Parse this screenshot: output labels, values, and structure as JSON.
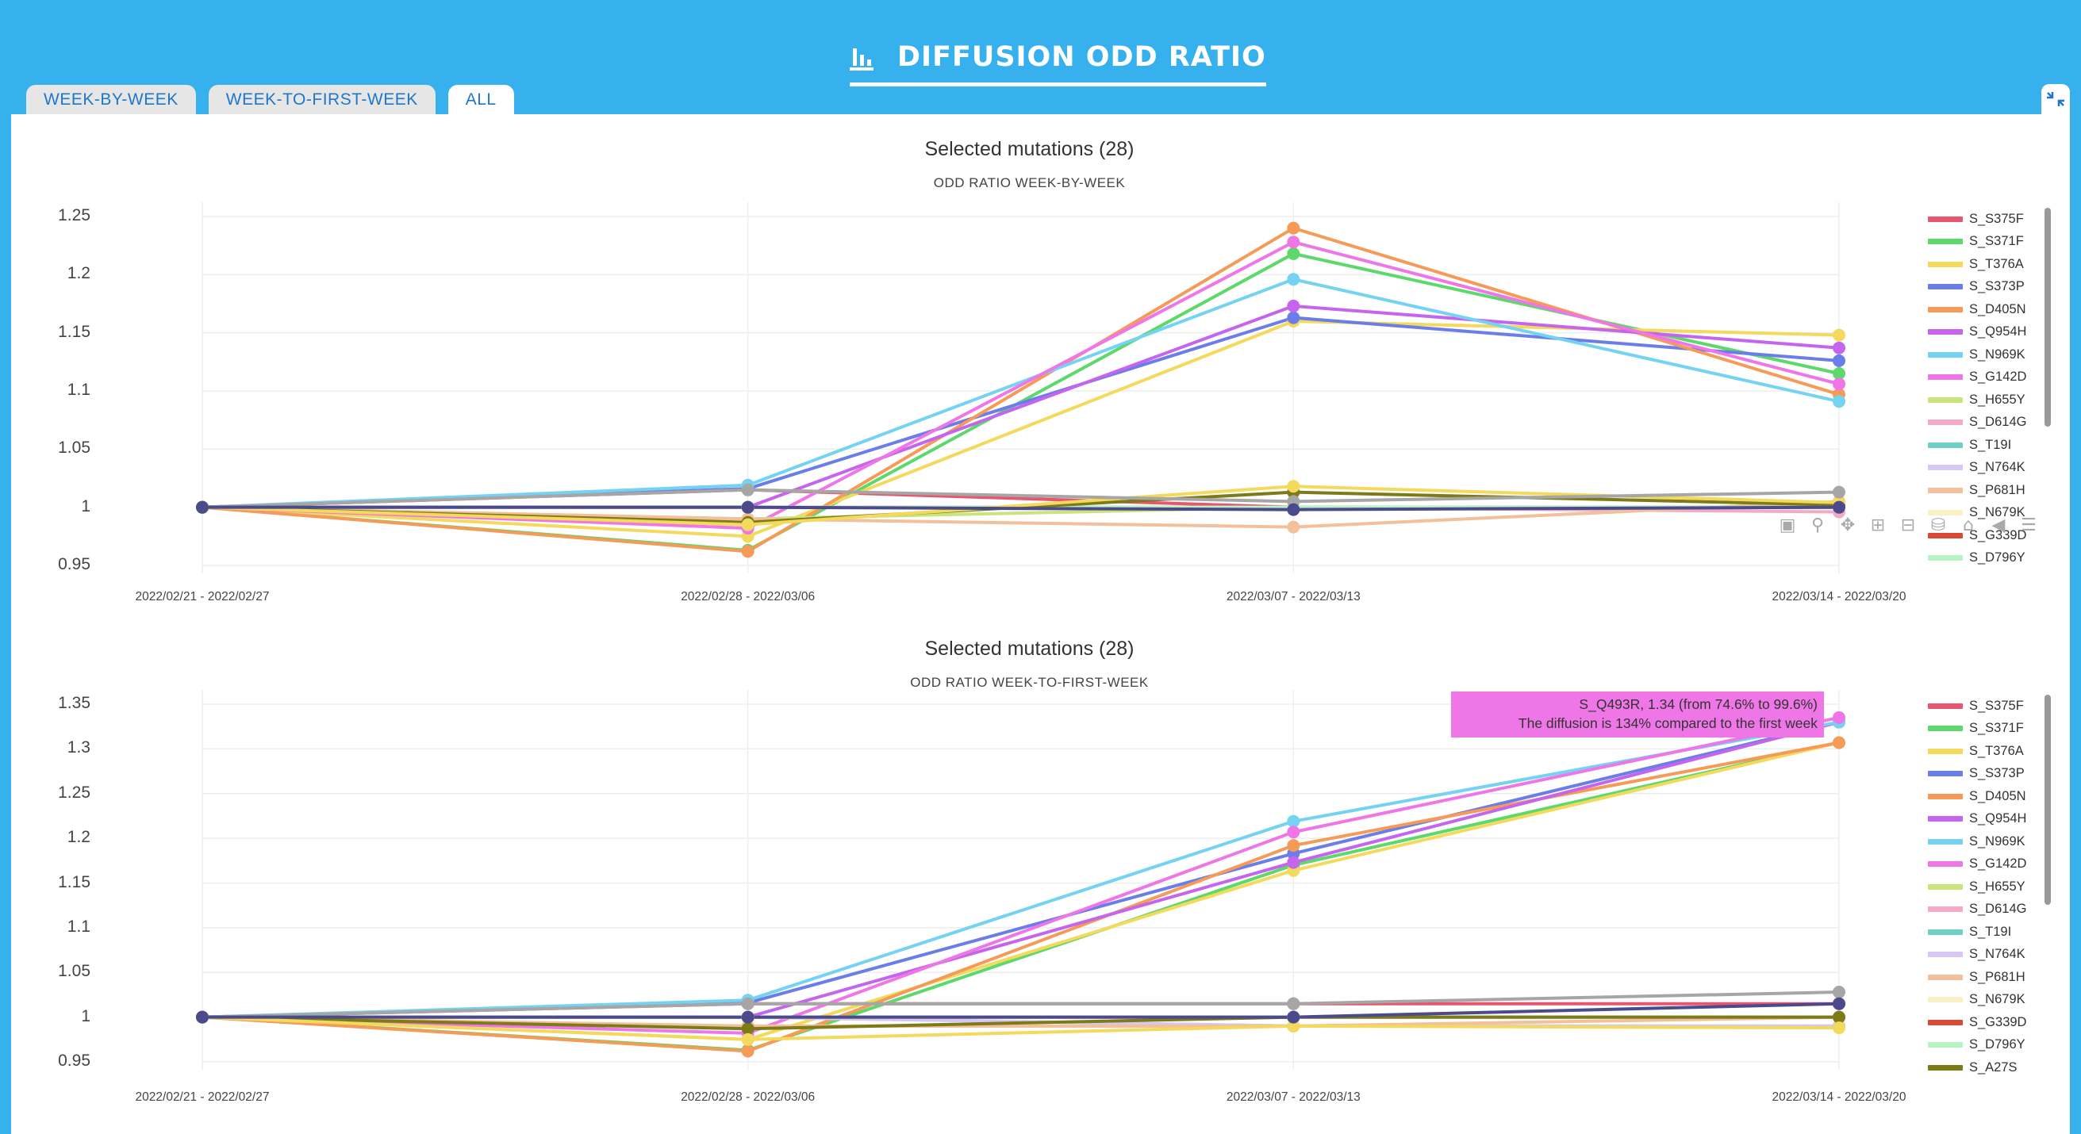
{
  "header": {
    "title": "DIFFUSION ODD RATIO",
    "icon": "bar-chart-icon"
  },
  "tabs": [
    {
      "label": "WEEK-BY-WEEK",
      "active": false
    },
    {
      "label": "WEEK-TO-FIRST-WEEK",
      "active": false
    },
    {
      "label": "ALL",
      "active": true
    }
  ],
  "collapse_icon": "collapse-icon",
  "modebar": [
    "camera-icon",
    "zoom-icon",
    "pan-icon",
    "zoom-in-icon",
    "zoom-out-icon",
    "autoscale-icon",
    "reset-axes-icon",
    "hover-closest-icon",
    "hover-compare-icon"
  ],
  "legend_items": [
    "S_S375F",
    "S_S371F",
    "S_T376A",
    "S_S373P",
    "S_D405N",
    "S_Q954H",
    "S_N969K",
    "S_G142D",
    "S_H655Y",
    "S_D614G",
    "S_T19I",
    "S_N764K",
    "S_P681H",
    "S_N679K",
    "S_G339D",
    "S_D796Y",
    "S_A27S"
  ],
  "tooltip": {
    "line1": "S_Q493R, 1.34 (from 74.6% to 99.6%)",
    "line2": "The diffusion is 134% compared to the first week",
    "color": "#ef76e7"
  },
  "chart_data": [
    {
      "type": "line",
      "title": "Selected mutations (28)",
      "subtitle": "ODD RATIO WEEK-BY-WEEK",
      "categories": [
        "2022/02/21 - 2022/02/27",
        "2022/02/28 - 2022/03/06",
        "2022/03/07 - 2022/03/13",
        "2022/03/14 - 2022/03/20"
      ],
      "yticks": [
        "1.25",
        "1.2",
        "1.15",
        "1.1",
        "1.05",
        "1",
        "0.95"
      ],
      "ylim": [
        0.95,
        1.25
      ],
      "legend_position": "right",
      "series": [
        {
          "name": "S_S375F",
          "color": "#e8556e",
          "values": [
            1,
            1.015,
            1.0,
            1.0
          ]
        },
        {
          "name": "S_S371F",
          "color": "#5dd86a",
          "values": [
            1,
            0.963,
            1.218,
            1.115
          ]
        },
        {
          "name": "S_T376A",
          "color": "#f3d95c",
          "values": [
            1,
            0.975,
            1.16,
            1.148
          ]
        },
        {
          "name": "S_S373P",
          "color": "#6b7de8",
          "values": [
            1,
            1.016,
            1.163,
            1.126
          ]
        },
        {
          "name": "S_D405N",
          "color": "#f69a57",
          "values": [
            1,
            0.962,
            1.24,
            1.097
          ]
        },
        {
          "name": "S_Q954H",
          "color": "#c564ec",
          "values": [
            1,
            1.0,
            1.173,
            1.137
          ]
        },
        {
          "name": "S_N969K",
          "color": "#74d3f2",
          "values": [
            1,
            1.019,
            1.196,
            1.091
          ]
        },
        {
          "name": "S_G142D",
          "color": "#ef76e7",
          "values": [
            1,
            0.982,
            1.228,
            1.106
          ]
        },
        {
          "name": "S_H655Y",
          "color": "#c8e47a",
          "values": [
            1,
            0.99,
            1.0,
            1.0
          ]
        },
        {
          "name": "S_D614G",
          "color": "#f4a9c6",
          "values": [
            1,
            1.0,
            1.0,
            0.996
          ]
        },
        {
          "name": "S_T19I",
          "color": "#6fcfc4",
          "values": [
            1,
            1.0,
            1.0,
            1.0
          ]
        },
        {
          "name": "S_N764K",
          "color": "#d8c6f4",
          "values": [
            1,
            1.0,
            1.0,
            1.0
          ]
        },
        {
          "name": "S_P681H",
          "color": "#f2c09a",
          "values": [
            1,
            0.99,
            0.983,
            1.005
          ]
        },
        {
          "name": "S_N679K",
          "color": "#faf0c4",
          "values": [
            1,
            1.0,
            1.0,
            1.0
          ]
        },
        {
          "name": "S_G339D",
          "color": "#d94a34",
          "values": [
            1,
            1.0,
            1.0,
            1.0
          ]
        },
        {
          "name": "S_D796Y",
          "color": "#b6f4c4",
          "values": [
            1,
            1.0,
            1.0,
            1.0
          ]
        },
        {
          "name": "S_A27S",
          "color": "#7d7a18",
          "values": [
            1,
            0.987,
            1.013,
            1.002
          ]
        },
        {
          "color": "#f3d95c",
          "values": [
            1,
            0.985,
            1.018,
            1.004
          ]
        },
        {
          "color": "#a6a6a6",
          "values": [
            1,
            1.015,
            1.005,
            1.013
          ]
        },
        {
          "color": "#4a4a8c",
          "values": [
            1,
            1.0,
            0.998,
            1.0
          ]
        }
      ]
    },
    {
      "type": "line",
      "title": "Selected mutations (28)",
      "subtitle": "ODD RATIO WEEK-TO-FIRST-WEEK",
      "categories": [
        "2022/02/21 - 2022/02/27",
        "2022/02/28 - 2022/03/06",
        "2022/03/07 - 2022/03/13",
        "2022/03/14 - 2022/03/20"
      ],
      "yticks": [
        "1.35",
        "1.3",
        "1.25",
        "1.2",
        "1.15",
        "1.1",
        "1.05",
        "1",
        "0.95"
      ],
      "ylim": [
        0.95,
        1.35
      ],
      "legend_position": "right",
      "series": [
        {
          "name": "S_S375F",
          "color": "#e8556e",
          "values": [
            1,
            1.015,
            1.015,
            1.015
          ]
        },
        {
          "name": "S_S371F",
          "color": "#5dd86a",
          "values": [
            1,
            0.963,
            1.17,
            1.307
          ]
        },
        {
          "name": "S_T376A",
          "color": "#f3d95c",
          "values": [
            1,
            0.975,
            1.164,
            1.307
          ]
        },
        {
          "name": "S_S373P",
          "color": "#6b7de8",
          "values": [
            1,
            1.016,
            1.183,
            1.33
          ]
        },
        {
          "name": "S_D405N",
          "color": "#f69a57",
          "values": [
            1,
            0.962,
            1.192,
            1.307
          ]
        },
        {
          "name": "S_Q954H",
          "color": "#c564ec",
          "values": [
            1,
            1.0,
            1.173,
            1.33
          ]
        },
        {
          "name": "S_N969K",
          "color": "#74d3f2",
          "values": [
            1,
            1.019,
            1.219,
            1.33
          ]
        },
        {
          "name": "S_G142D",
          "color": "#ef76e7",
          "values": [
            1,
            0.982,
            1.207,
            1.335
          ]
        },
        {
          "name": "S_H655Y",
          "color": "#c8e47a",
          "values": [
            1,
            0.99,
            0.99,
            0.99
          ]
        },
        {
          "name": "S_D614G",
          "color": "#f4a9c6",
          "values": [
            1,
            1.0,
            1.0,
            1.0
          ]
        },
        {
          "name": "S_T19I",
          "color": "#6fcfc4",
          "values": [
            1,
            1.0,
            0.99,
            0.99
          ]
        },
        {
          "name": "S_N764K",
          "color": "#d8c6f4",
          "values": [
            1,
            1.0,
            0.99,
            0.99
          ]
        },
        {
          "name": "S_P681H",
          "color": "#f2c09a",
          "values": [
            1,
            0.99,
            0.99,
            1.0
          ]
        },
        {
          "name": "S_N679K",
          "color": "#faf0c4",
          "values": [
            1,
            1.0,
            1.0,
            1.0
          ]
        },
        {
          "name": "S_G339D",
          "color": "#d94a34",
          "values": [
            1,
            1.0,
            1.0,
            1.0
          ]
        },
        {
          "name": "S_D796Y",
          "color": "#b6f4c4",
          "values": [
            1,
            1.0,
            1.0,
            1.0
          ]
        },
        {
          "name": "S_A27S",
          "color": "#7d7a18",
          "values": [
            1,
            0.987,
            1.0,
            1.0
          ]
        },
        {
          "color": "#f3d95c",
          "values": [
            1,
            0.975,
            0.99,
            0.988
          ]
        },
        {
          "color": "#a6a6a6",
          "values": [
            1,
            1.015,
            1.015,
            1.028
          ]
        },
        {
          "color": "#4a4a8c",
          "values": [
            1,
            1.0,
            1.0,
            1.015
          ]
        }
      ]
    }
  ]
}
